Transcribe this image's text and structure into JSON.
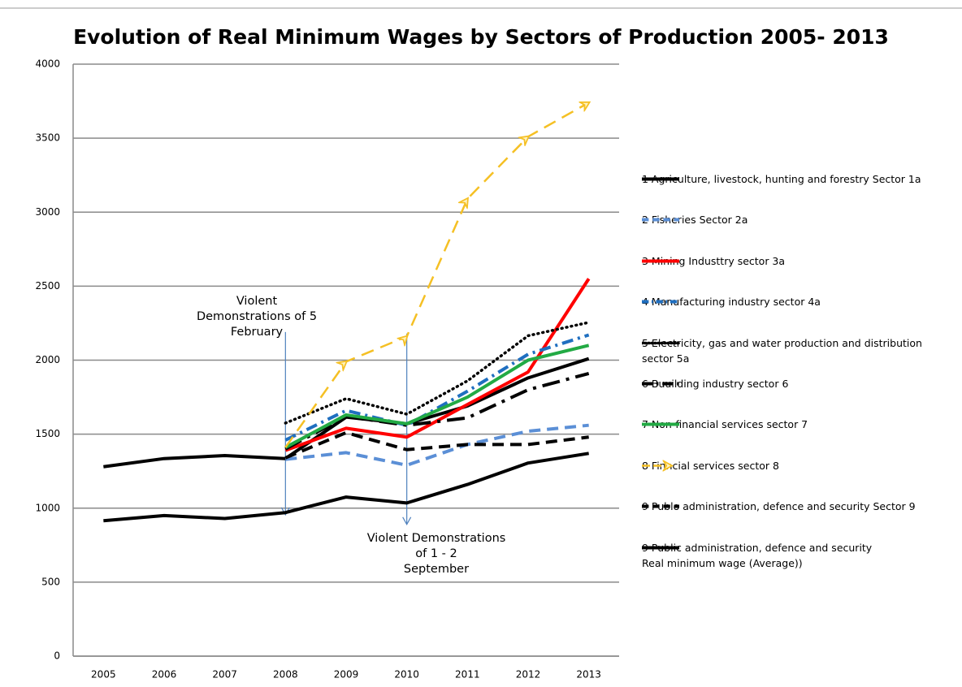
{
  "chart_data": {
    "type": "line",
    "title": "Evolution of Real Minimum Wages by Sectors of Production 2005- 2013",
    "categories": [
      "2005",
      "2006",
      "2007",
      "2008",
      "2009",
      "2010",
      "2011",
      "2012",
      "2013"
    ],
    "ylim": [
      0,
      4000
    ],
    "yticks": [
      0,
      500,
      1000,
      1500,
      2000,
      2500,
      3000,
      3500,
      4000
    ],
    "grid": true,
    "legend": "right",
    "annotations": [
      {
        "lines": [
          "Violent",
          "Demonstrations of 5",
          "February"
        ],
        "category": 3
      },
      {
        "lines": [
          "Violent Demonstrations",
          "of  1 - 2",
          "September"
        ],
        "category": 5
      }
    ],
    "series": [
      {
        "name": "1 Agriculture, livestock, hunting and forestry Sector 1a",
        "color": "#000000",
        "style": "solid",
        "values": [
          1280,
          1335,
          1355,
          1335,
          1615,
          1570,
          1690,
          1880,
          2010
        ]
      },
      {
        "name": "2 Fisheries  Sector 2a",
        "color": "#5b8fd6",
        "style": "dashed",
        "values": [
          null,
          null,
          null,
          1330,
          1375,
          1290,
          1430,
          1520,
          1560
        ]
      },
      {
        "name": "3 Mining Industtry sector 3a",
        "color": "#ff0000",
        "style": "solid",
        "values": [
          null,
          null,
          null,
          1390,
          1540,
          1480,
          1700,
          1920,
          2550
        ]
      },
      {
        "name": "4 Manufacturing industry sector 4a",
        "color": "#1f6fc0",
        "style": "dashdot",
        "values": [
          null,
          null,
          null,
          1460,
          1660,
          1560,
          1790,
          2040,
          2170
        ]
      },
      {
        "name": "5 Electricity, gas and water production and distribution sector 5a",
        "color": "#000000",
        "style": "dotted",
        "values": [
          null,
          null,
          null,
          1575,
          1740,
          1635,
          1860,
          2165,
          2255
        ]
      },
      {
        "name": "6  Buuilding industry sector 6",
        "color": "#000000",
        "style": "longdashdot",
        "values": [
          null,
          null,
          null,
          1400,
          1620,
          1560,
          1610,
          1800,
          1910
        ]
      },
      {
        "name": "7 Non-financial services sector 7",
        "color": "#22aa44",
        "style": "solid",
        "values": [
          null,
          null,
          null,
          1410,
          1630,
          1570,
          1750,
          2000,
          2100
        ]
      },
      {
        "name": "8 Finncial services sector 8",
        "color": "#f5c024",
        "style": "arrow",
        "values": [
          null,
          null,
          null,
          1410,
          1990,
          2160,
          3090,
          3510,
          3740
        ]
      },
      {
        "name": "9 Publo administration, defence and security Sector 9",
        "color": "#000000",
        "style": "dashed",
        "values": [
          null,
          null,
          null,
          1340,
          1510,
          1395,
          1430,
          1430,
          1480
        ]
      },
      {
        "name": "9 Public administration, defence and security\nReal minimum wage (Average))",
        "color": "#000000",
        "style": "solid",
        "values": [
          915,
          950,
          930,
          970,
          1075,
          1035,
          1160,
          1305,
          1370
        ]
      }
    ]
  }
}
